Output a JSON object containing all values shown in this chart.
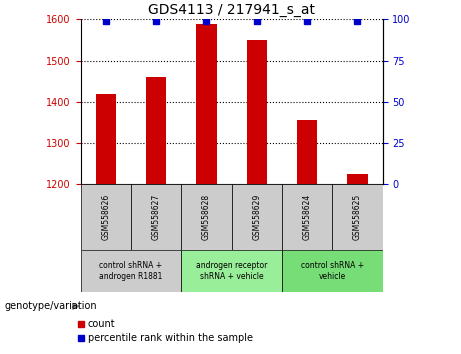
{
  "title": "GDS4113 / 217941_s_at",
  "samples": [
    "GSM558626",
    "GSM558627",
    "GSM558628",
    "GSM558629",
    "GSM558624",
    "GSM558625"
  ],
  "counts": [
    1420,
    1460,
    1590,
    1550,
    1355,
    1225
  ],
  "percentiles": [
    99,
    99,
    99,
    99,
    99,
    99
  ],
  "ylim_left": [
    1200,
    1600
  ],
  "ylim_right": [
    0,
    100
  ],
  "yticks_left": [
    1200,
    1300,
    1400,
    1500,
    1600
  ],
  "yticks_right": [
    0,
    25,
    50,
    75,
    100
  ],
  "bar_color": "#cc0000",
  "dot_color": "#0000cc",
  "bar_width": 0.4,
  "group_defs": [
    {
      "indices": [
        0,
        1
      ],
      "label": "control shRNA +\nandrogen R1881",
      "color": "#cccccc"
    },
    {
      "indices": [
        2,
        3
      ],
      "label": "androgen receptor\nshRNA + vehicle",
      "color": "#99ee99"
    },
    {
      "indices": [
        4,
        5
      ],
      "label": "control shRNA +\nvehicle",
      "color": "#77dd77"
    }
  ],
  "ylabel_left_color": "#cc0000",
  "ylabel_right_color": "#0000cc",
  "genotype_label": "genotype/variation",
  "legend_count_label": "count",
  "legend_percentile_label": "percentile rank within the sample",
  "sample_box_color": "#cccccc",
  "title_fontsize": 10
}
